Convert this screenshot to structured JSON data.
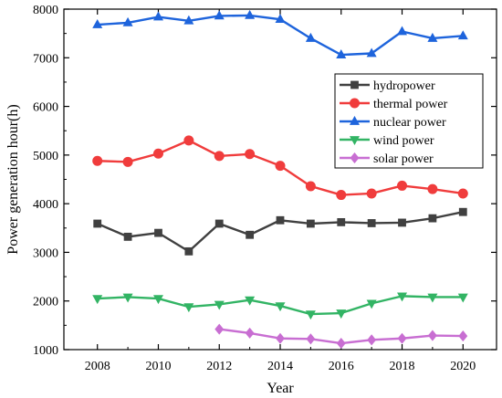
{
  "chart_data": {
    "type": "line",
    "xlabel": "Year",
    "ylabel": "Power generation hour(h)",
    "xlim": [
      2006.9,
      2021.1
    ],
    "ylim": [
      1000,
      8000
    ],
    "xticks": [
      2008,
      2010,
      2012,
      2014,
      2016,
      2018,
      2020
    ],
    "yticks": [
      1000,
      2000,
      3000,
      4000,
      5000,
      6000,
      7000,
      8000
    ],
    "grid": false,
    "legend_position": "top-right",
    "series": [
      {
        "name": "hydropower",
        "color": "#404040",
        "marker": "square",
        "x": [
          2008,
          2009,
          2010,
          2011,
          2012,
          2013,
          2014,
          2015,
          2016,
          2017,
          2018,
          2019,
          2020
        ],
        "values": [
          3590,
          3320,
          3400,
          3020,
          3590,
          3360,
          3660,
          3590,
          3620,
          3600,
          3610,
          3700,
          3830
        ]
      },
      {
        "name": "thermal power",
        "color": "#f03c3c",
        "marker": "circle",
        "x": [
          2008,
          2009,
          2010,
          2011,
          2012,
          2013,
          2014,
          2015,
          2016,
          2017,
          2018,
          2019,
          2020
        ],
        "values": [
          4880,
          4860,
          5030,
          5300,
          4980,
          5020,
          4780,
          4360,
          4180,
          4210,
          4370,
          4300,
          4210
        ]
      },
      {
        "name": "nuclear power",
        "color": "#1e64dc",
        "marker": "triangle-up",
        "x": [
          2008,
          2009,
          2010,
          2011,
          2012,
          2013,
          2014,
          2015,
          2016,
          2017,
          2018,
          2019,
          2020
        ],
        "values": [
          7680,
          7720,
          7840,
          7760,
          7860,
          7870,
          7790,
          7400,
          7060,
          7090,
          7540,
          7400,
          7450
        ]
      },
      {
        "name": "wind power",
        "color": "#32b464",
        "marker": "triangle-down",
        "x": [
          2008,
          2009,
          2010,
          2011,
          2012,
          2013,
          2014,
          2015,
          2016,
          2017,
          2018,
          2019,
          2020
        ],
        "values": [
          2050,
          2080,
          2050,
          1880,
          1930,
          2020,
          1900,
          1730,
          1750,
          1950,
          2100,
          2080,
          2080
        ]
      },
      {
        "name": "solar power",
        "color": "#c86ed2",
        "marker": "diamond",
        "x": [
          2012,
          2013,
          2014,
          2015,
          2016,
          2017,
          2018,
          2019,
          2020
        ],
        "values": [
          1420,
          1340,
          1230,
          1220,
          1130,
          1200,
          1230,
          1290,
          1280
        ]
      }
    ]
  }
}
